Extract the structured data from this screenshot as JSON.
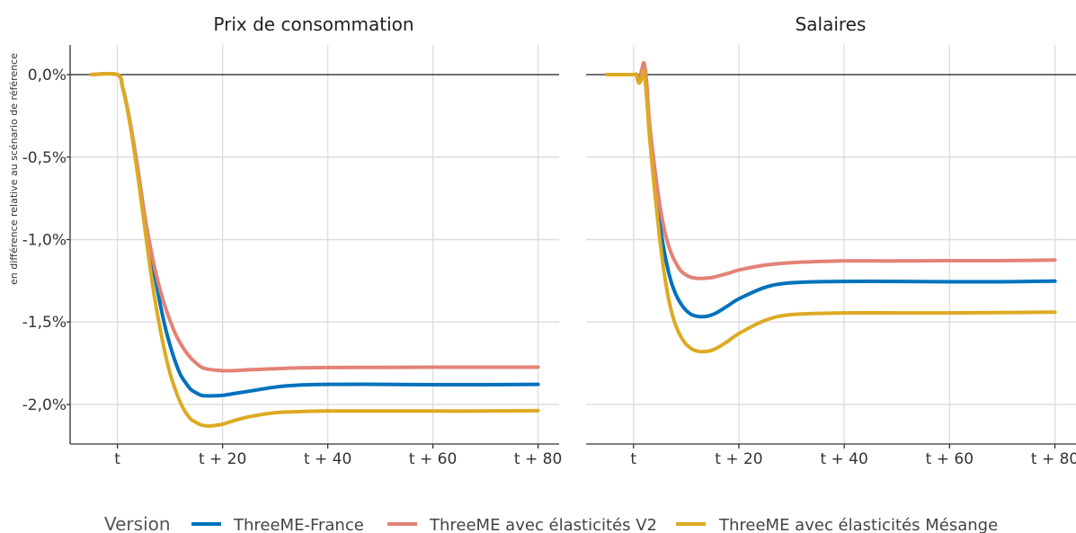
{
  "chart_data": {
    "type": "line",
    "ylabel": "en différence relative au scénario de référence",
    "y_ticks": [
      "0,0%",
      "-0,5%",
      "-1,0%",
      "-1,5%",
      "-2,0%"
    ],
    "y_tick_values": [
      0,
      -0.5,
      -1.0,
      -1.5,
      -2.0
    ],
    "x_ticks": [
      "t",
      "t + 20",
      "t + 40",
      "t + 60",
      "t + 80"
    ],
    "x_tick_values": [
      0,
      20,
      40,
      60,
      80
    ],
    "xlim": [
      -9,
      84
    ],
    "ylim": [
      -2.24,
      0.18
    ],
    "grid": true,
    "legend": {
      "title": "Version",
      "position": "bottom",
      "entries": [
        "ThreeME-France",
        "ThreeME avec élasticités V2",
        "ThreeME avec élasticités Mésange"
      ]
    },
    "colors": {
      "ThreeME-France": "#0072bd",
      "ThreeME avec élasticités V2": "#e38276",
      "ThreeME avec élasticités Mésange": "#ddaa22"
    },
    "panels": [
      {
        "title": "Prix de consommation",
        "series": [
          {
            "name": "ThreeME-France",
            "x": [
              -5,
              0,
              1,
              2,
              3,
              4,
              5,
              6,
              7,
              8,
              9,
              10,
              11,
              12,
              13,
              14,
              15,
              16,
              17,
              18,
              20,
              22,
              25,
              30,
              35,
              40,
              50,
              60,
              70,
              80
            ],
            "y": [
              0,
              0,
              -0.08,
              -0.22,
              -0.4,
              -0.6,
              -0.82,
              -1.02,
              -1.2,
              -1.37,
              -1.52,
              -1.64,
              -1.74,
              -1.82,
              -1.87,
              -1.91,
              -1.93,
              -1.945,
              -1.948,
              -1.948,
              -1.945,
              -1.935,
              -1.92,
              -1.895,
              -1.882,
              -1.878,
              -1.878,
              -1.88,
              -1.88,
              -1.878
            ]
          },
          {
            "name": "ThreeME avec élasticités V2",
            "x": [
              -5,
              0,
              1,
              2,
              3,
              4,
              5,
              6,
              7,
              8,
              9,
              10,
              11,
              12,
              13,
              14,
              15,
              16,
              17,
              18,
              20,
              22,
              25,
              30,
              35,
              40,
              50,
              60,
              70,
              80
            ],
            "y": [
              0,
              0,
              -0.08,
              -0.22,
              -0.4,
              -0.6,
              -0.82,
              -1.0,
              -1.16,
              -1.29,
              -1.4,
              -1.49,
              -1.57,
              -1.63,
              -1.68,
              -1.72,
              -1.75,
              -1.775,
              -1.785,
              -1.79,
              -1.795,
              -1.795,
              -1.79,
              -1.783,
              -1.778,
              -1.776,
              -1.775,
              -1.774,
              -1.774,
              -1.774
            ]
          },
          {
            "name": "ThreeME avec élasticités Mésange",
            "x": [
              -5,
              0,
              1,
              2,
              3,
              4,
              5,
              6,
              7,
              8,
              9,
              10,
              11,
              12,
              13,
              14,
              15,
              16,
              17,
              18,
              19,
              20,
              22,
              25,
              30,
              35,
              40,
              50,
              60,
              70,
              80
            ],
            "y": [
              0,
              0,
              -0.08,
              -0.23,
              -0.42,
              -0.64,
              -0.88,
              -1.12,
              -1.34,
              -1.52,
              -1.68,
              -1.81,
              -1.91,
              -1.99,
              -2.05,
              -2.09,
              -2.11,
              -2.125,
              -2.13,
              -2.13,
              -2.125,
              -2.12,
              -2.1,
              -2.075,
              -2.05,
              -2.043,
              -2.04,
              -2.04,
              -2.04,
              -2.04,
              -2.038
            ]
          }
        ]
      },
      {
        "title": "Salaires",
        "series": [
          {
            "name": "ThreeME-France",
            "x": [
              -5,
              0,
              0.5,
              1,
              1.5,
              2,
              2.5,
              3,
              4,
              5,
              6,
              7,
              8,
              9,
              10,
              11,
              12,
              13,
              14,
              15,
              16,
              18,
              20,
              25,
              30,
              40,
              50,
              60,
              70,
              80
            ],
            "y": [
              0,
              0,
              0,
              -0.04,
              -0.01,
              0.05,
              -0.1,
              -0.3,
              -0.62,
              -0.9,
              -1.1,
              -1.24,
              -1.33,
              -1.39,
              -1.43,
              -1.455,
              -1.465,
              -1.468,
              -1.465,
              -1.455,
              -1.44,
              -1.4,
              -1.36,
              -1.29,
              -1.262,
              -1.254,
              -1.254,
              -1.256,
              -1.256,
              -1.252
            ]
          },
          {
            "name": "ThreeME avec élasticités V2",
            "x": [
              -5,
              0,
              0.5,
              1,
              1.5,
              2,
              2.5,
              3,
              4,
              5,
              6,
              7,
              8,
              9,
              10,
              11,
              12,
              13,
              14,
              15,
              16,
              18,
              20,
              25,
              30,
              40,
              50,
              60,
              70,
              80
            ],
            "y": [
              0,
              0,
              0,
              -0.04,
              0.02,
              0.07,
              -0.05,
              -0.28,
              -0.56,
              -0.79,
              -0.96,
              -1.07,
              -1.14,
              -1.19,
              -1.215,
              -1.23,
              -1.235,
              -1.236,
              -1.234,
              -1.23,
              -1.222,
              -1.205,
              -1.185,
              -1.155,
              -1.14,
              -1.13,
              -1.13,
              -1.128,
              -1.128,
              -1.124
            ]
          },
          {
            "name": "ThreeME avec élasticités Mésange",
            "x": [
              -5,
              0,
              0.5,
              1,
              1.5,
              2,
              2.5,
              3,
              4,
              5,
              6,
              7,
              8,
              9,
              10,
              11,
              12,
              13,
              14,
              15,
              16,
              18,
              20,
              25,
              30,
              40,
              50,
              60,
              70,
              80
            ],
            "y": [
              0,
              0,
              0,
              -0.05,
              -0.03,
              0.02,
              -0.14,
              -0.36,
              -0.7,
              -1.0,
              -1.24,
              -1.41,
              -1.52,
              -1.59,
              -1.635,
              -1.662,
              -1.676,
              -1.68,
              -1.678,
              -1.67,
              -1.655,
              -1.615,
              -1.57,
              -1.49,
              -1.455,
              -1.445,
              -1.445,
              -1.445,
              -1.443,
              -1.44
            ]
          }
        ]
      }
    ]
  }
}
